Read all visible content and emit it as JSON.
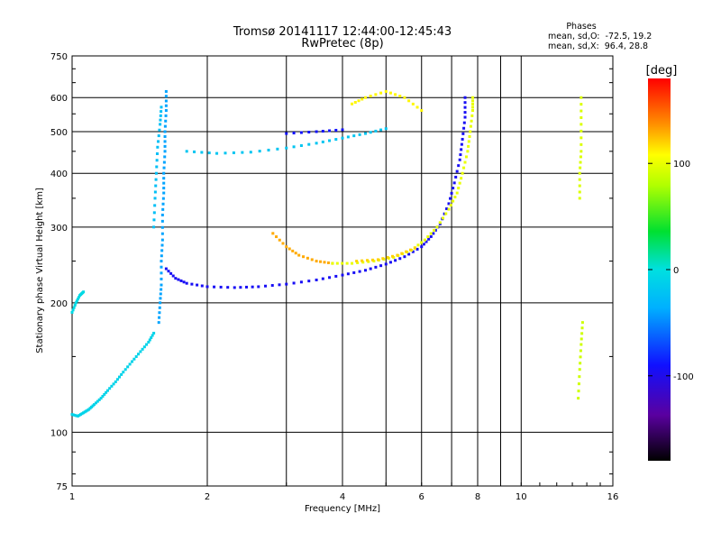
{
  "chart_data": {
    "type": "scatter",
    "title": "Tromsø 20141117 12:44:00-12:45:43",
    "subtitle": "RwPretec (8p)",
    "xlabel": "Frequency [MHz]",
    "ylabel": "Stationary phase Virtual Height [km]",
    "x_scale": "log",
    "y_scale": "log",
    "xlim": [
      1,
      16
    ],
    "ylim": [
      75,
      750
    ],
    "x_ticks": [
      1,
      2,
      4,
      6,
      8,
      10,
      16
    ],
    "x_minor_ticks": [
      3,
      5,
      7,
      9
    ],
    "y_ticks": [
      75,
      100,
      200,
      300,
      400,
      500,
      600,
      750
    ],
    "grid": true,
    "phase_stats": {
      "title": "Phases",
      "line_o": "mean, sd,O:  -72.5, 19.2",
      "line_x": "mean, sd,X:  96.4, 28.8"
    },
    "colorbar": {
      "label": "[deg]",
      "range": [
        -180,
        180
      ],
      "ticks": [
        100,
        0,
        -100
      ],
      "colormap": "rainbow: black-purple-blue-cyan-green-yellow-orange-red"
    },
    "traces": [
      {
        "points": [
          [
            1.0,
            110
          ],
          [
            1.03,
            109
          ],
          [
            1.06,
            111
          ],
          [
            1.09,
            113
          ],
          [
            1.12,
            116
          ],
          [
            1.16,
            120
          ],
          [
            1.2,
            125
          ],
          [
            1.25,
            131
          ],
          [
            1.3,
            138
          ],
          [
            1.36,
            146
          ],
          [
            1.42,
            154
          ],
          [
            1.48,
            162
          ],
          [
            1.52,
            170
          ]
        ],
        "phase": -10
      },
      {
        "points": [
          [
            1.0,
            190
          ],
          [
            1.02,
            200
          ],
          [
            1.04,
            208
          ],
          [
            1.06,
            212
          ]
        ],
        "phase": -5
      },
      {
        "points": [
          [
            1.56,
            180
          ],
          [
            1.57,
            200
          ],
          [
            1.58,
            220
          ],
          [
            1.58,
            250
          ],
          [
            1.59,
            280
          ],
          [
            1.59,
            320
          ],
          [
            1.6,
            360
          ],
          [
            1.6,
            400
          ],
          [
            1.61,
            450
          ],
          [
            1.61,
            500
          ],
          [
            1.62,
            560
          ],
          [
            1.62,
            620
          ]
        ],
        "phase": -40
      },
      {
        "points": [
          [
            1.52,
            300
          ],
          [
            1.53,
            350
          ],
          [
            1.54,
            400
          ],
          [
            1.55,
            460
          ],
          [
            1.57,
            520
          ],
          [
            1.58,
            570
          ]
        ],
        "phase": -25
      },
      {
        "points": [
          [
            1.62,
            240
          ],
          [
            1.7,
            228
          ],
          [
            1.8,
            222
          ],
          [
            2.0,
            218
          ],
          [
            2.3,
            217
          ],
          [
            2.6,
            218
          ],
          [
            3.0,
            221
          ],
          [
            3.5,
            226
          ],
          [
            4.0,
            232
          ],
          [
            4.5,
            238
          ],
          [
            5.0,
            246
          ],
          [
            5.5,
            256
          ],
          [
            6.0,
            270
          ],
          [
            6.3,
            285
          ],
          [
            6.6,
            305
          ],
          [
            6.9,
            340
          ],
          [
            7.1,
            380
          ],
          [
            7.3,
            430
          ],
          [
            7.4,
            480
          ],
          [
            7.5,
            540
          ],
          [
            7.5,
            600
          ]
        ],
        "phase": -95
      },
      {
        "points": [
          [
            2.8,
            290
          ],
          [
            3.0,
            270
          ],
          [
            3.2,
            258
          ],
          [
            3.5,
            250
          ],
          [
            3.8,
            247
          ]
        ],
        "phase": 130
      },
      {
        "points": [
          [
            3.8,
            247
          ],
          [
            4.2,
            247
          ],
          [
            4.7,
            250
          ],
          [
            5.2,
            255
          ],
          [
            5.7,
            265
          ],
          [
            6.1,
            280
          ],
          [
            6.5,
            300
          ],
          [
            6.9,
            330
          ],
          [
            7.2,
            360
          ],
          [
            7.4,
            400
          ],
          [
            7.6,
            450
          ],
          [
            7.7,
            500
          ],
          [
            7.8,
            560
          ],
          [
            7.8,
            600
          ]
        ],
        "phase": 100
      },
      {
        "points": [
          [
            4.3,
            250
          ],
          [
            4.8,
            252
          ],
          [
            5.3,
            258
          ],
          [
            5.8,
            268
          ]
        ],
        "phase": 120
      },
      {
        "points": [
          [
            1.8,
            450
          ],
          [
            2.1,
            445
          ],
          [
            2.5,
            448
          ],
          [
            3.0,
            458
          ],
          [
            3.5,
            470
          ],
          [
            4.0,
            483
          ],
          [
            4.5,
            495
          ],
          [
            5.0,
            508
          ]
        ],
        "phase": -20
      },
      {
        "points": [
          [
            3.0,
            495
          ],
          [
            3.5,
            500
          ],
          [
            4.0,
            505
          ]
        ],
        "phase": -90
      },
      {
        "points": [
          [
            13.5,
            350
          ],
          [
            13.5,
            400
          ],
          [
            13.6,
            450
          ],
          [
            13.6,
            520
          ],
          [
            13.6,
            600
          ]
        ],
        "phase": 95
      },
      {
        "points": [
          [
            13.4,
            120
          ],
          [
            13.5,
            140
          ],
          [
            13.6,
            160
          ],
          [
            13.7,
            180
          ]
        ],
        "phase": 90
      },
      {
        "points": [
          [
            4.2,
            580
          ],
          [
            4.5,
            600
          ],
          [
            5.0,
            620
          ],
          [
            5.5,
            600
          ],
          [
            6.0,
            560
          ]
        ],
        "phase": 110
      }
    ]
  }
}
